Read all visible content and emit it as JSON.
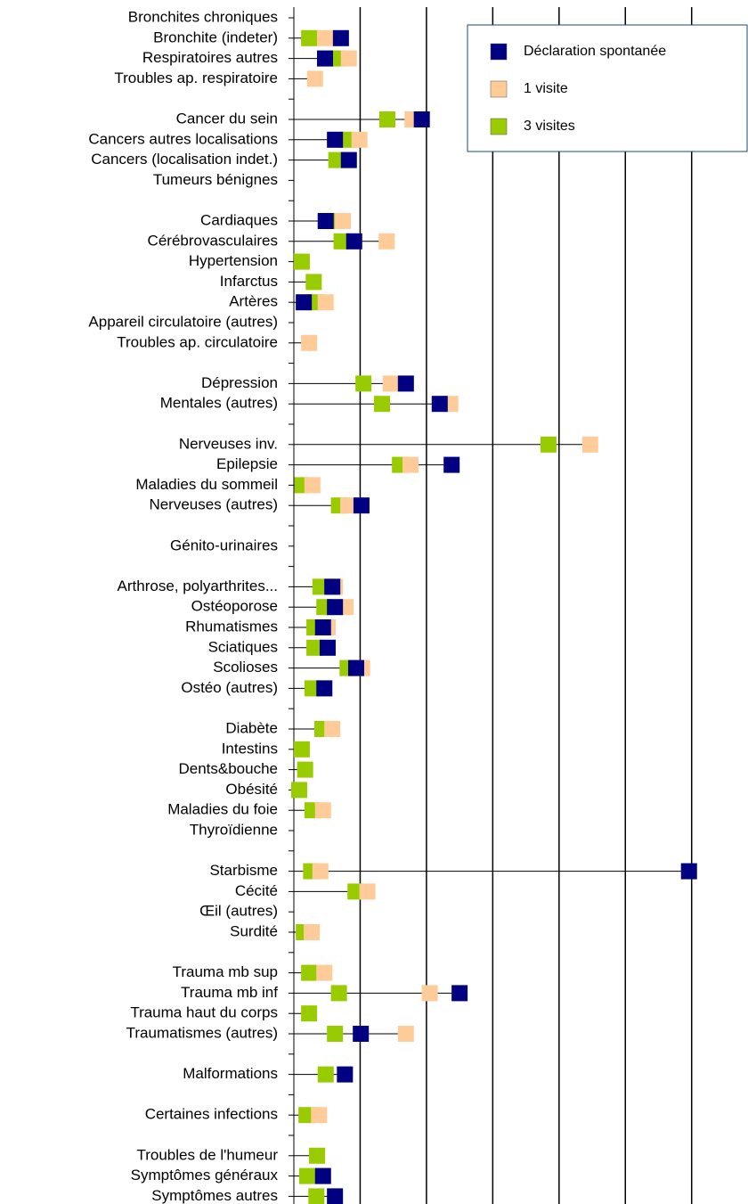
{
  "chart_data": {
    "type": "dot",
    "categories": [
      "Bronchites chroniques",
      "Bronchite (indeter)",
      "Respiratoires autres",
      "Troubles ap. respiratoire",
      null,
      "Cancer du sein",
      "Cancers autres localisations",
      "Cancers (localisation indet.)",
      "Tumeurs bénignes",
      null,
      "Cardiaques",
      "Cérébrovasculaires",
      "Hypertension",
      "Infarctus",
      "Artères",
      "Appareil circulatoire (autres)",
      "Troubles ap. circulatoire",
      null,
      "Dépression",
      "Mentales (autres)",
      null,
      "Nerveuses inv.",
      "Epilepsie",
      "Maladies du sommeil",
      "Nerveuses (autres)",
      null,
      "Génito-urinaires",
      null,
      "Arthrose, polyarthrites...",
      "Ostéoporose",
      "Rhumatismes",
      "Sciatiques",
      "Scolioses",
      "Ostéo (autres)",
      null,
      "Diabète",
      "Intestins",
      "Dents&bouche",
      "Obésité",
      "Maladies du foie",
      "Thyroïdienne",
      null,
      "Starbisme",
      "Cécité",
      "Œil (autres)",
      "Surdité",
      null,
      "Trauma mb sup",
      "Trauma mb inf",
      "Trauma haut du corps",
      "Traumatismes (autres)",
      null,
      "Malformations",
      null,
      "Certaines infections",
      null,
      "Troubles de l'humeur",
      "Symptômes généraux",
      "Symptômes autres"
    ],
    "series": [
      {
        "name": "Déclaration spontanée",
        "color": "#000080",
        "values": [
          null,
          0.71,
          0.47,
          null,
          null,
          1.93,
          0.62,
          0.83,
          null,
          null,
          0.48,
          0.91,
          null,
          null,
          0.15,
          null,
          null,
          null,
          1.69,
          2.2,
          null,
          null,
          2.38,
          null,
          1.02,
          null,
          null,
          null,
          0.58,
          0.62,
          0.44,
          0.51,
          0.94,
          0.46,
          null,
          null,
          null,
          null,
          null,
          null,
          null,
          null,
          5.96,
          null,
          null,
          null,
          null,
          null,
          2.5,
          null,
          1.01,
          null,
          0.77,
          null,
          null,
          null,
          null,
          0.44,
          0.62
        ]
      },
      {
        "name": "1 visite",
        "color": "#ffcc99",
        "values": [
          null,
          0.47,
          0.83,
          0.32,
          null,
          1.79,
          0.99,
          null,
          null,
          null,
          0.74,
          1.4,
          null,
          null,
          0.48,
          null,
          0.23,
          null,
          1.46,
          2.36,
          null,
          4.47,
          1.76,
          0.28,
          0.82,
          null,
          null,
          null,
          0.62,
          0.78,
          0.51,
          null,
          1.03,
          null,
          null,
          0.58,
          null,
          null,
          null,
          0.44,
          null,
          null,
          0.4,
          1.11,
          null,
          0.27,
          null,
          0.46,
          2.05,
          null,
          1.69,
          null,
          null,
          null,
          0.38,
          null,
          null,
          null,
          null
        ]
      },
      {
        "name": "3 visites",
        "color": "#99cc00",
        "values": [
          null,
          0.23,
          0.66,
          null,
          null,
          1.41,
          0.81,
          0.64,
          null,
          null,
          0.67,
          0.72,
          0.12,
          0.3,
          0.31,
          null,
          null,
          null,
          1.05,
          1.33,
          null,
          3.84,
          1.6,
          0.13,
          0.68,
          null,
          null,
          null,
          0.4,
          0.46,
          0.31,
          0.31,
          0.81,
          0.28,
          null,
          0.43,
          0.12,
          0.17,
          0.08,
          0.28,
          null,
          null,
          0.26,
          0.93,
          null,
          0.15,
          null,
          0.23,
          0.68,
          0.23,
          0.62,
          null,
          0.48,
          null,
          0.19,
          null,
          0.35,
          0.2,
          0.34
        ]
      }
    ],
    "xlim": [
      0,
      6.85
    ],
    "xticks": [
      1,
      2,
      3,
      4,
      5,
      6
    ],
    "grid": true,
    "legend": "top-right"
  }
}
